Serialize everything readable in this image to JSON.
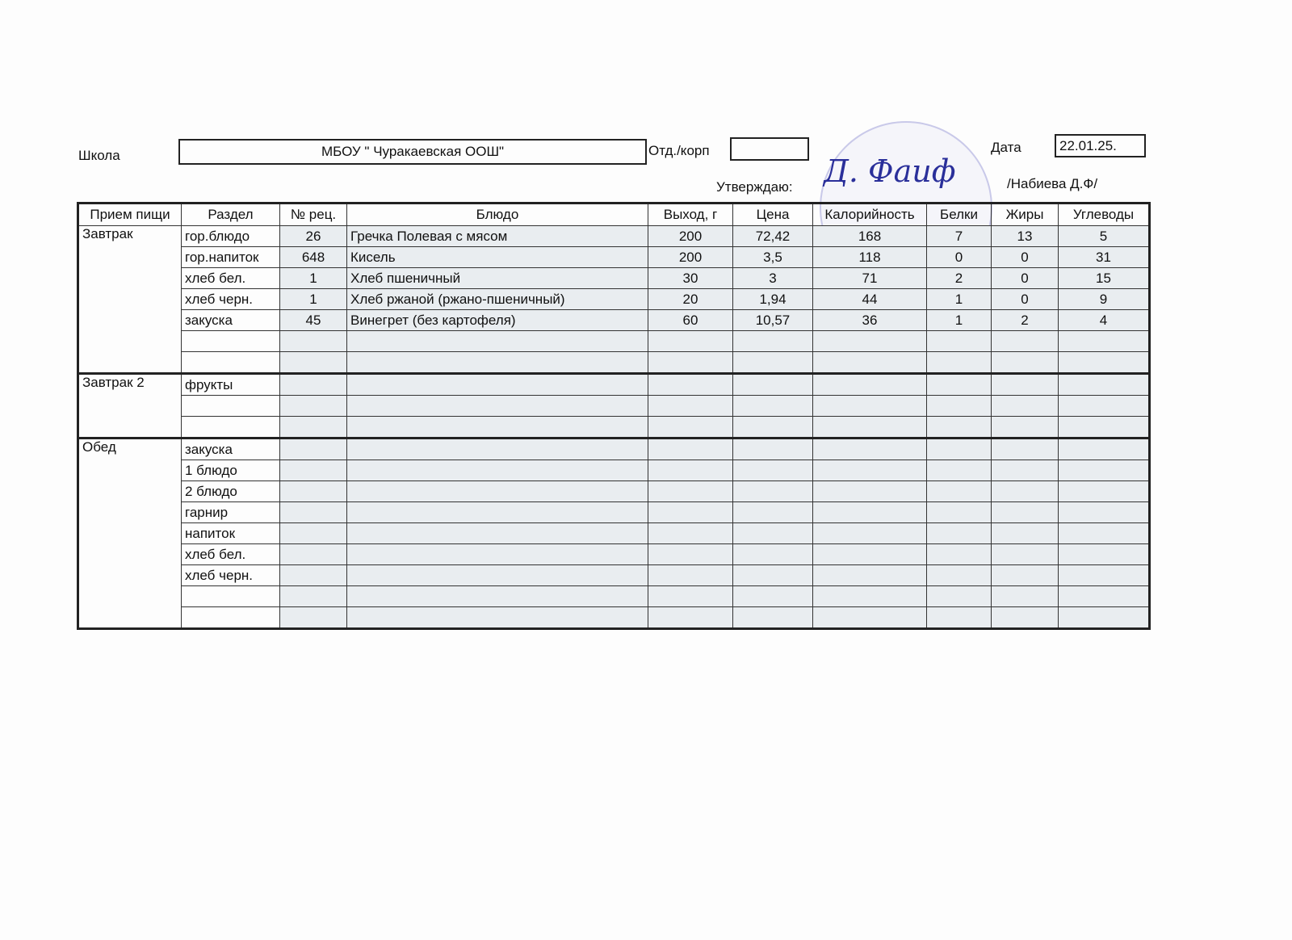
{
  "header": {
    "school_label": "Школа",
    "school_value": "МБОУ  \" Чуракаевская ООШ\"",
    "dept_label": "Отд./корп",
    "dept_value": "",
    "date_label": "Дата",
    "date_value": "22.01.25.",
    "approve_label": "Утверждаю:",
    "approver": "/Набиева Д.Ф/",
    "signature": "Д. Фаиф"
  },
  "table": {
    "columns": [
      "Прием пищи",
      "Раздел",
      "№ рец.",
      "Блюдо",
      "Выход, г",
      "Цена",
      "Калорийность",
      "Белки",
      "Жиры",
      "Углеводы"
    ],
    "groups": [
      {
        "meal": "Завтрак",
        "rows": [
          [
            "гор.блюдо",
            "26",
            "Гречка Полевая с мясом",
            "200",
            "72,42",
            "168",
            "7",
            "13",
            "5"
          ],
          [
            "гор.напиток",
            "648",
            "Кисель",
            "200",
            "3,5",
            "118",
            "0",
            "0",
            "31"
          ],
          [
            "хлеб бел.",
            "1",
            "Хлеб пшеничный",
            "30",
            "3",
            "71",
            "2",
            "0",
            "15"
          ],
          [
            "хлеб черн.",
            "1",
            "Хлеб ржаной (ржано-пшеничный)",
            "20",
            "1,94",
            "44",
            "1",
            "0",
            "9"
          ],
          [
            "закуска",
            "45",
            "Винегрет (без картофеля)",
            "60",
            "10,57",
            "36",
            "1",
            "2",
            "4"
          ],
          [
            "",
            "",
            "",
            "",
            "",
            "",
            "",
            "",
            ""
          ],
          [
            "",
            "",
            "",
            "",
            "",
            "",
            "",
            "",
            ""
          ]
        ]
      },
      {
        "meal": "Завтрак 2",
        "rows": [
          [
            "фрукты",
            "",
            "",
            "",
            "",
            "",
            "",
            "",
            ""
          ],
          [
            "",
            "",
            "",
            "",
            "",
            "",
            "",
            "",
            ""
          ],
          [
            "",
            "",
            "",
            "",
            "",
            "",
            "",
            "",
            ""
          ]
        ]
      },
      {
        "meal": "Обед",
        "rows": [
          [
            "закуска",
            "",
            "",
            "",
            "",
            "",
            "",
            "",
            ""
          ],
          [
            "1 блюдо",
            "",
            "",
            "",
            "",
            "",
            "",
            "",
            ""
          ],
          [
            "2 блюдо",
            "",
            "",
            "",
            "",
            "",
            "",
            "",
            ""
          ],
          [
            "гарнир",
            "",
            "",
            "",
            "",
            "",
            "",
            "",
            ""
          ],
          [
            "напиток",
            "",
            "",
            "",
            "",
            "",
            "",
            "",
            ""
          ],
          [
            "хлеб бел.",
            "",
            "",
            "",
            "",
            "",
            "",
            "",
            ""
          ],
          [
            "хлеб черн.",
            "",
            "",
            "",
            "",
            "",
            "",
            "",
            ""
          ],
          [
            "",
            "",
            "",
            "",
            "",
            "",
            "",
            "",
            ""
          ],
          [
            "",
            "",
            "",
            "",
            "",
            "",
            "",
            "",
            ""
          ]
        ]
      }
    ]
  }
}
